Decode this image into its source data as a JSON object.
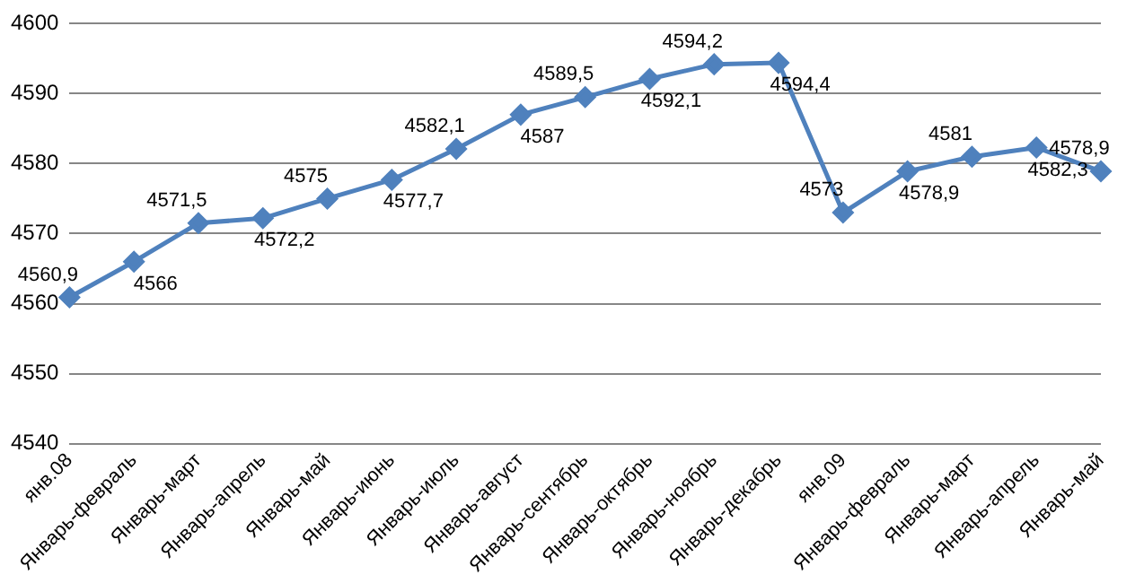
{
  "chart_data": {
    "type": "line",
    "categories": [
      "янв.08",
      "Январь-февраль",
      "Январь-март",
      "Январь-апрель",
      "Январь-май",
      "Январь-июнь",
      "Январь-июль",
      "Январь-август",
      "Январь-сентябрь",
      "Январь-октябрь",
      "Январь-ноябрь",
      "Январь-декабрь",
      "янв.09",
      "Январь-февраль",
      "Январь-март",
      "Январь-апрель",
      "Январь-май"
    ],
    "values": [
      4560.9,
      4566,
      4571.5,
      4572.2,
      4575,
      4577.7,
      4582.1,
      4587,
      4589.5,
      4592.1,
      4594.2,
      4594.4,
      4573,
      4578.9,
      4581,
      4582.3,
      4578.9
    ],
    "value_labels": [
      "4560,9",
      "4566",
      "4571,5",
      "4572,2",
      "4575",
      "4577,7",
      "4582,1",
      "4587",
      "4589,5",
      "4592,1",
      "4594,2",
      "4594,4",
      "4573",
      "4578,9",
      "4581",
      "4582,3",
      "4578,9"
    ],
    "color": "#4f81bd",
    "marker": "diamond",
    "line_style": "solid",
    "ylim": [
      4540,
      4600
    ],
    "yticks": [
      4540,
      4550,
      4560,
      4570,
      4580,
      4590,
      4600
    ],
    "grid": "y",
    "legend": false
  }
}
